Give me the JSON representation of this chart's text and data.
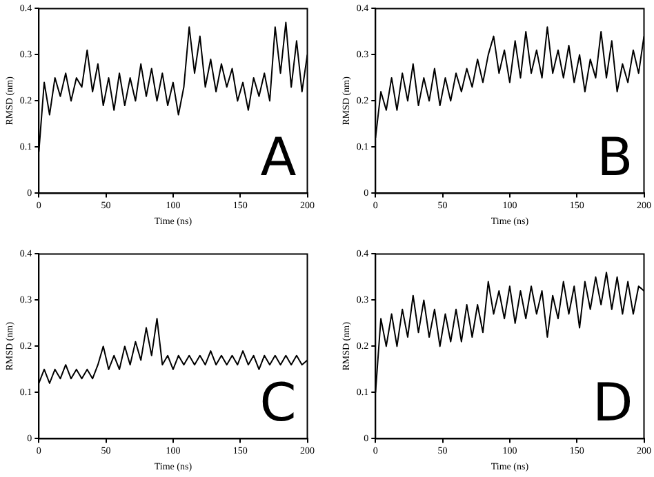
{
  "chart_data": [
    {
      "type": "line",
      "xlabel": "Time (ns)",
      "ylabel": "RMSD (nm)",
      "annotations": [
        "A"
      ],
      "xlim": [
        0,
        200
      ],
      "xticks": [
        0,
        50,
        100,
        150,
        200
      ],
      "ylim": [
        0,
        0.4
      ],
      "yticks": [
        0,
        0.1,
        0.2,
        0.3,
        0.4
      ],
      "grid": false,
      "legend": false,
      "marker": "none",
      "line_style": "solid",
      "series": [
        {
          "color": "#000000",
          "x": [
            0,
            4,
            8,
            12,
            16,
            20,
            24,
            28,
            32,
            36,
            40,
            44,
            48,
            52,
            56,
            60,
            64,
            68,
            72,
            76,
            80,
            84,
            88,
            92,
            96,
            100,
            104,
            108,
            112,
            116,
            120,
            124,
            128,
            132,
            136,
            140,
            144,
            148,
            152,
            156,
            160,
            164,
            168,
            172,
            176,
            180,
            184,
            188,
            192,
            196,
            200
          ],
          "values": [
            0.09,
            0.24,
            0.17,
            0.25,
            0.21,
            0.26,
            0.2,
            0.25,
            0.23,
            0.31,
            0.22,
            0.28,
            0.19,
            0.25,
            0.18,
            0.26,
            0.19,
            0.25,
            0.2,
            0.28,
            0.21,
            0.27,
            0.2,
            0.26,
            0.19,
            0.24,
            0.17,
            0.23,
            0.36,
            0.26,
            0.34,
            0.23,
            0.29,
            0.22,
            0.28,
            0.23,
            0.27,
            0.2,
            0.24,
            0.18,
            0.25,
            0.21,
            0.26,
            0.2,
            0.36,
            0.26,
            0.37,
            0.23,
            0.33,
            0.22,
            0.3
          ]
        }
      ]
    },
    {
      "type": "line",
      "xlabel": "Time (ns)",
      "ylabel": "RMSD (nm)",
      "annotations": [
        "B"
      ],
      "xlim": [
        0,
        200
      ],
      "xticks": [
        0,
        50,
        100,
        150,
        200
      ],
      "ylim": [
        0,
        0.4
      ],
      "yticks": [
        0,
        0.1,
        0.2,
        0.3,
        0.4
      ],
      "grid": false,
      "legend": false,
      "marker": "none",
      "line_style": "solid",
      "series": [
        {
          "color": "#000000",
          "x": [
            0,
            4,
            8,
            12,
            16,
            20,
            24,
            28,
            32,
            36,
            40,
            44,
            48,
            52,
            56,
            60,
            64,
            68,
            72,
            76,
            80,
            84,
            88,
            92,
            96,
            100,
            104,
            108,
            112,
            116,
            120,
            124,
            128,
            132,
            136,
            140,
            144,
            148,
            152,
            156,
            160,
            164,
            168,
            172,
            176,
            180,
            184,
            188,
            192,
            196,
            200
          ],
          "values": [
            0.12,
            0.22,
            0.18,
            0.25,
            0.18,
            0.26,
            0.2,
            0.28,
            0.19,
            0.25,
            0.2,
            0.27,
            0.19,
            0.25,
            0.2,
            0.26,
            0.22,
            0.27,
            0.23,
            0.29,
            0.24,
            0.3,
            0.34,
            0.26,
            0.31,
            0.24,
            0.33,
            0.25,
            0.35,
            0.26,
            0.31,
            0.25,
            0.36,
            0.26,
            0.31,
            0.25,
            0.32,
            0.24,
            0.3,
            0.22,
            0.29,
            0.25,
            0.35,
            0.25,
            0.33,
            0.22,
            0.28,
            0.24,
            0.31,
            0.26,
            0.34
          ]
        }
      ]
    },
    {
      "type": "line",
      "xlabel": "Time (ns)",
      "ylabel": "RMSD (nm)",
      "annotations": [
        "C"
      ],
      "xlim": [
        0,
        200
      ],
      "xticks": [
        0,
        50,
        100,
        150,
        200
      ],
      "ylim": [
        0,
        0.4
      ],
      "yticks": [
        0,
        0.1,
        0.2,
        0.3,
        0.4
      ],
      "grid": false,
      "legend": false,
      "marker": "none",
      "line_style": "solid",
      "series": [
        {
          "color": "#000000",
          "x": [
            0,
            4,
            8,
            12,
            16,
            20,
            24,
            28,
            32,
            36,
            40,
            44,
            48,
            52,
            56,
            60,
            64,
            68,
            72,
            76,
            80,
            84,
            88,
            92,
            96,
            100,
            104,
            108,
            112,
            116,
            120,
            124,
            128,
            132,
            136,
            140,
            144,
            148,
            152,
            156,
            160,
            164,
            168,
            172,
            176,
            180,
            184,
            188,
            192,
            196,
            200
          ],
          "values": [
            0.12,
            0.15,
            0.12,
            0.15,
            0.13,
            0.16,
            0.13,
            0.15,
            0.13,
            0.15,
            0.13,
            0.16,
            0.2,
            0.15,
            0.18,
            0.15,
            0.2,
            0.16,
            0.21,
            0.17,
            0.24,
            0.18,
            0.26,
            0.16,
            0.18,
            0.15,
            0.18,
            0.16,
            0.18,
            0.16,
            0.18,
            0.16,
            0.19,
            0.16,
            0.18,
            0.16,
            0.18,
            0.16,
            0.19,
            0.16,
            0.18,
            0.15,
            0.18,
            0.16,
            0.18,
            0.16,
            0.18,
            0.16,
            0.18,
            0.16,
            0.17
          ]
        }
      ]
    },
    {
      "type": "line",
      "xlabel": "Time (ns)",
      "ylabel": "RMSD (nm)",
      "annotations": [
        "D"
      ],
      "xlim": [
        0,
        200
      ],
      "xticks": [
        0,
        50,
        100,
        150,
        200
      ],
      "ylim": [
        0,
        0.4
      ],
      "yticks": [
        0,
        0.1,
        0.2,
        0.3,
        0.4
      ],
      "grid": false,
      "legend": false,
      "marker": "none",
      "line_style": "solid",
      "series": [
        {
          "color": "#000000",
          "x": [
            0,
            4,
            8,
            12,
            16,
            20,
            24,
            28,
            32,
            36,
            40,
            44,
            48,
            52,
            56,
            60,
            64,
            68,
            72,
            76,
            80,
            84,
            88,
            92,
            96,
            100,
            104,
            108,
            112,
            116,
            120,
            124,
            128,
            132,
            136,
            140,
            144,
            148,
            152,
            156,
            160,
            164,
            168,
            172,
            176,
            180,
            184,
            188,
            192,
            196,
            200
          ],
          "values": [
            0.1,
            0.26,
            0.2,
            0.27,
            0.2,
            0.28,
            0.22,
            0.31,
            0.23,
            0.3,
            0.22,
            0.28,
            0.2,
            0.27,
            0.21,
            0.28,
            0.21,
            0.29,
            0.22,
            0.29,
            0.23,
            0.34,
            0.27,
            0.32,
            0.26,
            0.33,
            0.25,
            0.32,
            0.26,
            0.33,
            0.27,
            0.32,
            0.22,
            0.31,
            0.26,
            0.34,
            0.27,
            0.33,
            0.24,
            0.34,
            0.28,
            0.35,
            0.29,
            0.36,
            0.28,
            0.35,
            0.27,
            0.34,
            0.27,
            0.33,
            0.32
          ]
        }
      ]
    }
  ]
}
